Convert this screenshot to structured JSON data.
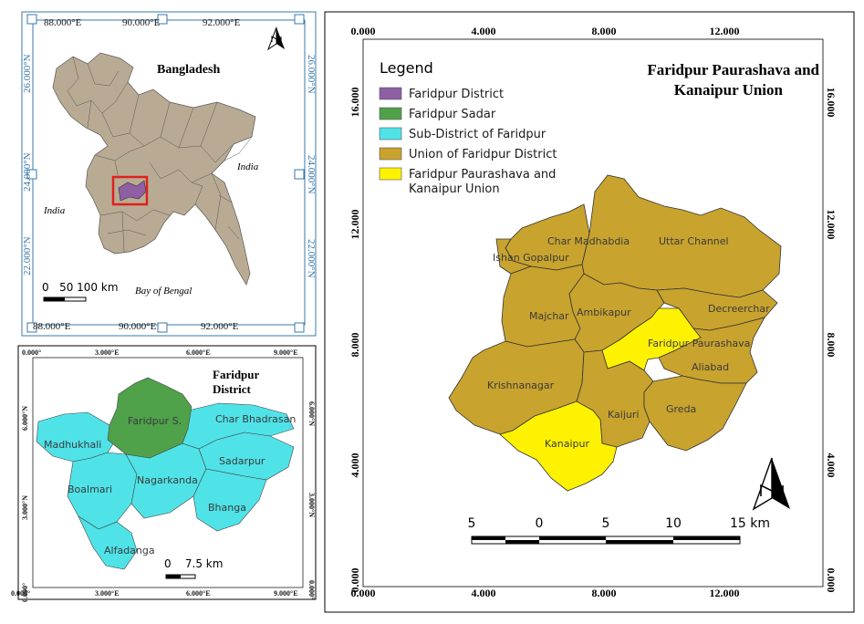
{
  "inset_bangladesh": {
    "title": "Bangladesh",
    "top_ticks": [
      "88.000°E",
      "90.000°E",
      "92.000°E"
    ],
    "bottom_ticks": [
      "88.000°E",
      "90.000°E",
      "92.000°E"
    ],
    "left_ticks": [
      "26.000°N",
      "24.000°N",
      "22.000°N"
    ],
    "right_ticks": [
      "26.000°N",
      "24.000°N",
      "22.000°N"
    ],
    "labels": {
      "india_east": "India",
      "india_west": "India",
      "bay": "Bay of Bengal"
    },
    "scale": "0   50 100 km"
  },
  "inset_faridpur": {
    "title_line1": "Faridpur",
    "title_line2": "District",
    "top_ticks": [
      "0.000°",
      "3.000°E",
      "6.000°E",
      "9.000°E"
    ],
    "bottom_ticks": [
      "0.000°",
      "3.000°E",
      "6.000°E",
      "9.000°E"
    ],
    "left_ticks": [
      "6.000°N",
      "3.000°N",
      "0.000°"
    ],
    "right_ticks": [
      "6.000°N",
      "3.000°N",
      "0.000°"
    ],
    "upazilas": [
      "Faridpur S.",
      "Char Bhadrasan",
      "Madhukhali",
      "Sadarpur",
      "Nagarkanda",
      "Boalmari",
      "Bhanga",
      "Alfadanga"
    ],
    "scale": "0    7.5 km"
  },
  "main_map": {
    "title_line1": "Faridpur Paurashava and",
    "title_line2": "Kanaipur Union",
    "top_ticks": [
      "0.000",
      "4.000",
      "8.000",
      "12.000"
    ],
    "bottom_ticks": [
      "0.000",
      "4.000",
      "8.000",
      "12.000"
    ],
    "left_ticks": [
      "16.000",
      "12.000",
      "8.000",
      "4.000",
      "0.000"
    ],
    "right_ticks": [
      "16.000",
      "12.000",
      "8.000",
      "4.000",
      "0.000"
    ],
    "unions": [
      "Char Madhabdia",
      "Uttar Channel",
      "Ishan Gopalpur",
      "Majchar",
      "Ambikapur",
      "Decreerchar",
      "Faridpur Paurashava",
      "Aliabad",
      "Krishnanagar",
      "Kaijuri",
      "Greda",
      "Kanaipur"
    ],
    "scale_labels": [
      "5",
      "0",
      "5",
      "10",
      "15 km"
    ]
  },
  "legend": {
    "title": "Legend",
    "items": [
      {
        "label": "Faridpur District",
        "color": "#8e5fa3"
      },
      {
        "label": "Faridpur Sadar",
        "color": "#4fa14a"
      },
      {
        "label": "Sub-District of Faridpur",
        "color": "#4fe3e8"
      },
      {
        "label": "Union of Faridpur District",
        "color": "#c8a32e"
      },
      {
        "label": "Faridpur Paurashava and",
        "label2": "Kanaipur Union",
        "color": "#fff200"
      }
    ]
  },
  "colors": {
    "bangladesh_land": "#b9ab93",
    "frame_blue": "#3a78a8",
    "highlight_box": "#e0201d"
  }
}
